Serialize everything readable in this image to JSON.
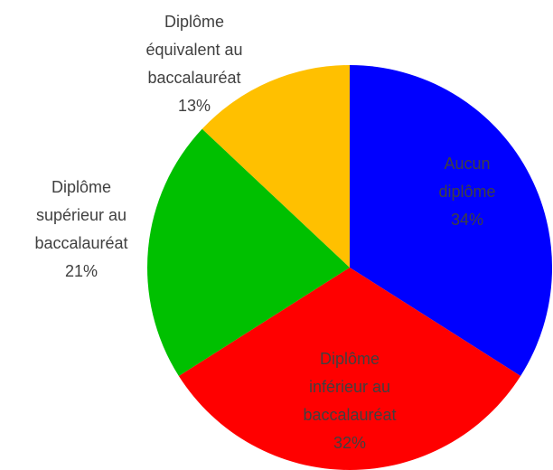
{
  "chart_data": {
    "type": "pie",
    "categories": [
      "Aucun diplôme",
      "Diplôme inférieur au baccalauréat",
      "Diplôme supérieur au baccalauréat",
      "Diplôme équivalent au baccalauréat"
    ],
    "values": [
      34,
      32,
      21,
      13
    ],
    "value_labels": [
      "34%",
      "32%",
      "21%",
      "13%"
    ],
    "colors": [
      "#0000ff",
      "#ff0000",
      "#00c000",
      "#ffc000"
    ]
  }
}
